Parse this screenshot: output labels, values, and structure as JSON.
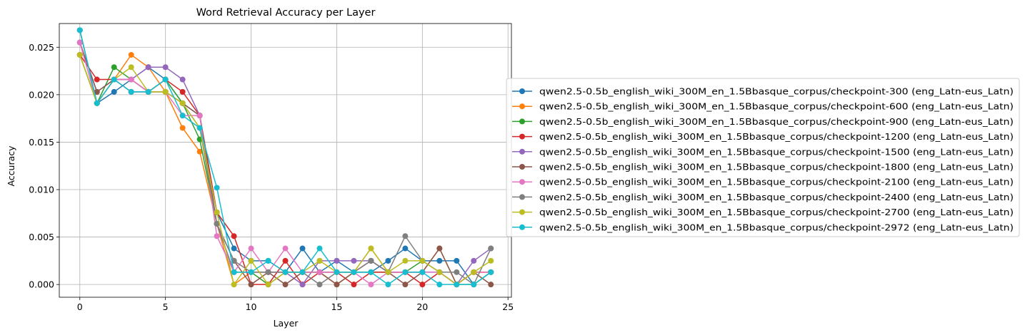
{
  "chart_data": {
    "type": "line",
    "title": "Word Retrieval Accuracy per Layer",
    "xlabel": "Layer",
    "ylabel": "Accuracy",
    "xlim": [
      -1.2,
      25.2
    ],
    "ylim": [
      -0.00134,
      0.0275
    ],
    "xticks": [
      0,
      5,
      10,
      15,
      20,
      25
    ],
    "yticks": [
      0.0,
      0.005,
      0.01,
      0.015,
      0.02,
      0.025
    ],
    "ytick_labels": [
      "0.000",
      "0.005",
      "0.010",
      "0.015",
      "0.020",
      "0.025"
    ],
    "grid": true,
    "legend_placement": "center-left outside plot",
    "x": [
      0,
      1,
      2,
      3,
      4,
      5,
      6,
      7,
      8,
      9,
      10,
      11,
      12,
      13,
      14,
      15,
      16,
      17,
      18,
      19,
      20,
      21,
      22,
      23,
      24
    ],
    "series": [
      {
        "name": "qwen2.5-0.5b_english_wiki_300M_en_1.5Bbasque_corpus/checkpoint-300 (eng_Latn-eus_Latn)",
        "color": "#1f77b4",
        "values": [
          0.0268,
          0.0191,
          0.0203,
          0.0216,
          0.0229,
          0.0216,
          0.0191,
          0.0178,
          0.0076,
          0.0038,
          0.0025,
          0.0025,
          0.0013,
          0.0038,
          0.0013,
          0.0025,
          0.0013,
          0.0013,
          0.0025,
          0.0038,
          0.0025,
          0.0025,
          0.0025,
          0.0,
          0.0013
        ]
      },
      {
        "name": "qwen2.5-0.5b_english_wiki_300M_en_1.5Bbasque_corpus/checkpoint-600 (eng_Latn-eus_Latn)",
        "color": "#ff7f0e",
        "values": [
          0.0242,
          0.0191,
          0.0216,
          0.0242,
          0.0229,
          0.0203,
          0.0165,
          0.014,
          0.0064,
          0.0,
          0.0013,
          0.0013,
          0.0013,
          0.0013,
          0.0013,
          0.0,
          0.0013,
          0.0038,
          0.0013,
          0.0013,
          0.0013,
          0.0038,
          0.0,
          0.0013,
          0.0013
        ]
      },
      {
        "name": "qwen2.5-0.5b_english_wiki_300M_en_1.5Bbasque_corpus/checkpoint-900 (eng_Latn-eus_Latn)",
        "color": "#2ca02c",
        "values": [
          0.0242,
          0.0191,
          0.0229,
          0.0216,
          0.0203,
          0.0216,
          0.0191,
          0.0153,
          0.0064,
          0.0013,
          0.0013,
          0.0,
          0.0013,
          0.0013,
          0.0013,
          0.0013,
          0.0013,
          0.0013,
          0.0013,
          0.0013,
          0.0025,
          0.0013,
          0.0,
          0.0,
          0.0013
        ]
      },
      {
        "name": "qwen2.5-0.5b_english_wiki_300M_en_1.5Bbasque_corpus/checkpoint-1200 (eng_Latn-eus_Latn)",
        "color": "#d62728",
        "values": [
          0.0242,
          0.0216,
          0.0216,
          0.0216,
          0.0203,
          0.0216,
          0.0203,
          0.0178,
          0.0076,
          0.0051,
          0.0,
          0.0,
          0.0025,
          0.0,
          0.0013,
          0.0013,
          0.0,
          0.0013,
          0.0013,
          0.0013,
          0.0,
          0.0013,
          0.0,
          0.0013,
          0.0013
        ]
      },
      {
        "name": "qwen2.5-0.5b_english_wiki_300M_en_1.5Bbasque_corpus/checkpoint-1500 (eng_Latn-eus_Latn)",
        "color": "#9467bd",
        "values": [
          0.0255,
          0.0203,
          0.0216,
          0.0216,
          0.0229,
          0.0229,
          0.0216,
          0.0178,
          0.0064,
          0.0013,
          0.0013,
          0.0013,
          0.0013,
          0.0,
          0.0025,
          0.0025,
          0.0025,
          0.0025,
          0.0013,
          0.0013,
          0.0013,
          0.0013,
          0.0,
          0.0025,
          0.0038
        ]
      },
      {
        "name": "qwen2.5-0.5b_english_wiki_300M_en_1.5Bbasque_corpus/checkpoint-1800 (eng_Latn-eus_Latn)",
        "color": "#8c564b",
        "values": [
          0.0255,
          0.0203,
          0.0216,
          0.0203,
          0.0203,
          0.0203,
          0.0191,
          0.0178,
          0.0064,
          0.0025,
          0.0,
          0.0013,
          0.0,
          0.0013,
          0.0013,
          0.0,
          0.0013,
          0.0025,
          0.0013,
          0.0,
          0.0013,
          0.0038,
          0.0,
          0.0013,
          0.0
        ]
      },
      {
        "name": "qwen2.5-0.5b_english_wiki_300M_en_1.5Bbasque_corpus/checkpoint-2100 (eng_Latn-eus_Latn)",
        "color": "#e377c2",
        "values": [
          0.0255,
          0.0191,
          0.0216,
          0.0216,
          0.0203,
          0.0203,
          0.0178,
          0.0178,
          0.0051,
          0.0013,
          0.0038,
          0.0013,
          0.0038,
          0.0013,
          0.0013,
          0.0013,
          0.0013,
          0.0,
          0.0013,
          0.0013,
          0.0013,
          0.0013,
          0.0,
          0.0013,
          0.0013
        ]
      },
      {
        "name": "qwen2.5-0.5b_english_wiki_300M_en_1.5Bbasque_corpus/checkpoint-2400 (eng_Latn-eus_Latn)",
        "color": "#7f7f7f",
        "values": [
          0.0268,
          0.0191,
          0.0216,
          0.0203,
          0.0203,
          0.0203,
          0.0191,
          0.0165,
          0.0064,
          0.0025,
          0.0013,
          0.0013,
          0.0013,
          0.0013,
          0.0,
          0.0013,
          0.0013,
          0.0025,
          0.0013,
          0.0051,
          0.0025,
          0.0013,
          0.0013,
          0.0,
          0.0038
        ]
      },
      {
        "name": "qwen2.5-0.5b_english_wiki_300M_en_1.5Bbasque_corpus/checkpoint-2700 (eng_Latn-eus_Latn)",
        "color": "#bcbd22",
        "values": [
          0.0242,
          0.0191,
          0.0216,
          0.0229,
          0.0203,
          0.0203,
          0.0191,
          0.0165,
          0.0076,
          0.0,
          0.0025,
          0.0,
          0.0013,
          0.0013,
          0.0025,
          0.0013,
          0.0013,
          0.0038,
          0.0013,
          0.0025,
          0.0025,
          0.0013,
          0.0,
          0.0013,
          0.0025
        ]
      },
      {
        "name": "qwen2.5-0.5b_english_wiki_300M_en_1.5Bbasque_corpus/checkpoint-2972 (eng_Latn-eus_Latn)",
        "color": "#17becf",
        "values": [
          0.0268,
          0.0191,
          0.0216,
          0.0203,
          0.0203,
          0.0216,
          0.0178,
          0.0165,
          0.0102,
          0.0013,
          0.0013,
          0.0025,
          0.0013,
          0.0013,
          0.0038,
          0.0013,
          0.0013,
          0.0013,
          0.0,
          0.0013,
          0.0013,
          0.0,
          0.0,
          0.0,
          0.0013
        ]
      }
    ]
  }
}
